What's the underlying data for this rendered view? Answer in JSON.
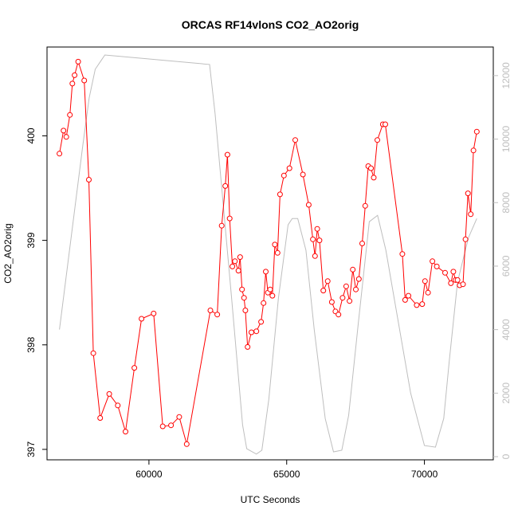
{
  "chart_data": {
    "type": "line",
    "title": "ORCAS RF14vlonS CO2_AO2orig",
    "xlabel": "UTC Seconds",
    "ylabel": "CO2_AO2orig",
    "xlim": [
      56300,
      72500
    ],
    "ylim": [
      396.9,
      400.85
    ],
    "y2lim": [
      -100,
      12900
    ],
    "x_ticks": [
      60000,
      65000,
      70000
    ],
    "y_ticks": [
      397,
      398,
      399,
      400
    ],
    "y2_ticks": [
      0,
      2000,
      4000,
      6000,
      8000,
      10000,
      12000
    ],
    "x_tick_labels": [
      "60000",
      "65000",
      "70000"
    ],
    "y_tick_labels": [
      "397",
      "398",
      "399",
      "400"
    ],
    "y2_tick_labels": [
      "0",
      "2000",
      "4000",
      "6000",
      "8000",
      "10000",
      "12000"
    ],
    "grid": false,
    "legend": "none",
    "series": [
      {
        "color": "#ff0000",
        "axis": "left",
        "marker": "open-circle",
        "x": [
          56750,
          56900,
          57000,
          57130,
          57220,
          57300,
          57430,
          57650,
          57820,
          57980,
          58230,
          58560,
          58870,
          59150,
          59470,
          59730,
          60170,
          60500,
          60800,
          61100,
          61370,
          62230,
          62480,
          62640,
          62770,
          62850,
          62930,
          63030,
          63120,
          63250,
          63310,
          63380,
          63450,
          63500,
          63580,
          63720,
          63900,
          64070,
          64160,
          64240,
          64320,
          64400,
          64480,
          64570,
          64670,
          64760,
          64900,
          65100,
          65310,
          65590,
          65800,
          65950,
          66030,
          66110,
          66190,
          66330,
          66490,
          66640,
          66770,
          66880,
          67030,
          67160,
          67280,
          67400,
          67510,
          67620,
          67740,
          67850,
          67960,
          68060,
          68160,
          68290,
          68490,
          68580,
          69200,
          69300,
          69420,
          69720,
          69920,
          70020,
          70130,
          70290,
          70450,
          70750,
          70960,
          71050,
          71130,
          71200,
          71280,
          71400,
          71490,
          71580,
          71680,
          71780,
          71900
        ],
        "y": [
          399.83,
          400.05,
          399.99,
          400.2,
          400.5,
          400.58,
          400.71,
          400.53,
          399.58,
          397.92,
          397.3,
          397.53,
          397.42,
          397.17,
          397.78,
          398.25,
          398.3,
          397.22,
          397.23,
          397.31,
          397.05,
          398.33,
          398.29,
          399.14,
          399.52,
          399.82,
          399.21,
          398.75,
          398.8,
          398.71,
          398.84,
          398.53,
          398.45,
          398.33,
          397.98,
          398.12,
          398.13,
          398.22,
          398.4,
          398.7,
          398.5,
          398.53,
          398.47,
          398.96,
          398.88,
          399.44,
          399.62,
          399.69,
          399.96,
          399.63,
          399.34,
          399.01,
          398.85,
          399.11,
          399.0,
          398.52,
          398.61,
          398.41,
          398.32,
          398.29,
          398.45,
          398.56,
          398.42,
          398.72,
          398.53,
          398.63,
          398.97,
          399.33,
          399.71,
          399.69,
          399.6,
          399.96,
          400.11,
          400.11,
          398.87,
          398.43,
          398.47,
          398.38,
          398.39,
          398.61,
          398.5,
          398.8,
          398.75,
          398.69,
          398.59,
          398.7,
          398.62,
          398.62,
          398.57,
          398.58,
          399.01,
          399.45,
          399.25,
          399.86,
          400.04
        ]
      },
      {
        "color": "#bebebe",
        "axis": "right",
        "marker": "none",
        "x": [
          56750,
          57600,
          57830,
          58050,
          58400,
          62200,
          62400,
          63000,
          63400,
          63550,
          63900,
          64100,
          64350,
          64700,
          65050,
          65200,
          65400,
          65700,
          66000,
          66400,
          66700,
          67000,
          67250,
          67600,
          68000,
          68300,
          68600,
          69000,
          69500,
          70000,
          70400,
          70700,
          70900,
          71200,
          71600,
          71900
        ],
        "y": [
          4000,
          9800,
          11300,
          12200,
          12650,
          12350,
          10800,
          5000,
          1000,
          250,
          80,
          200,
          1800,
          5000,
          7300,
          7500,
          7500,
          6500,
          4000,
          1200,
          150,
          200,
          1300,
          4200,
          7400,
          7600,
          6500,
          4500,
          2000,
          350,
          300,
          1200,
          3000,
          5500,
          6900,
          7500
        ]
      }
    ]
  }
}
